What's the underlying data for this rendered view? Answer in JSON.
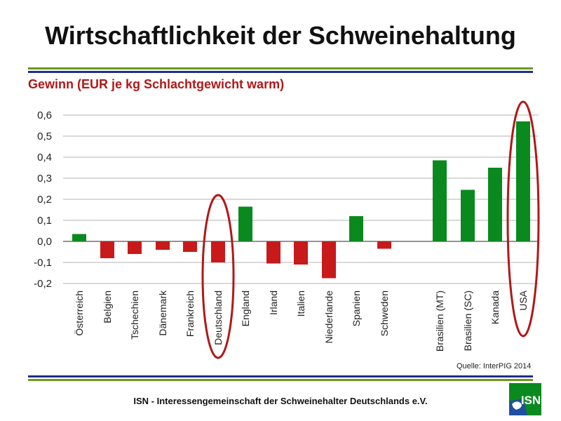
{
  "title": "Wirtschaftlichkeit der Schweinehaltung",
  "subtitle": "Gewinn (EUR je kg Schlachtgewicht warm)",
  "source": "Quelle: InterPIG 2014",
  "footer": "ISN - Interessengemeinschaft der Schweinehalter Deutschlands e.V.",
  "logo": {
    "text": "ISN"
  },
  "colors": {
    "positive": "#0a8a1e",
    "negative": "#c81a1a",
    "highlight": "#b01818",
    "rule_green": "#6a9a1f",
    "rule_blue": "#1f2f8a",
    "logo_green": "#0a8a1e",
    "logo_blue": "#1f4fa0"
  },
  "chart_data": {
    "type": "bar",
    "title": "Gewinn (EUR je kg Schlachtgewicht warm)",
    "categories": [
      "Österreich",
      "Belgien",
      "Tschechien",
      "Dänemark",
      "Frankreich",
      "Deutschland",
      "England",
      "Irland",
      "Italien",
      "Niederlande",
      "Spanien",
      "Schweden",
      "Brasilien (MT)",
      "Brasilien (SC)",
      "Kanada",
      "USA"
    ],
    "values": [
      0.035,
      -0.08,
      -0.06,
      -0.04,
      -0.05,
      -0.1,
      0.165,
      -0.105,
      -0.11,
      -0.175,
      0.12,
      -0.035,
      0.385,
      0.245,
      0.35,
      0.57
    ],
    "ylim": [
      -0.2,
      0.6
    ],
    "yticks": [
      0.6,
      0.5,
      0.4,
      0.3,
      0.2,
      0.1,
      0.0,
      -0.1,
      -0.2
    ],
    "ytick_labels": [
      "0,6",
      "0,5",
      "0,4",
      "0,3",
      "0,2",
      "0,1",
      "0,0",
      "-0,1",
      "-0,2"
    ],
    "grid": true,
    "highlighted": [
      "Deutschland",
      "USA"
    ]
  }
}
